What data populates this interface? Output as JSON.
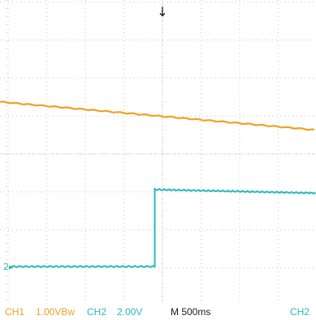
{
  "trigger_marker": "↓",
  "ch2_ground_marker": "2▸",
  "status": {
    "ch1_label": "CH1",
    "ch1_scale": "1.00VBw",
    "ch2_label": "CH2",
    "ch2_scale": "2.00V",
    "timebase": "M 500ms",
    "ch2_right": "CH2"
  },
  "colors": {
    "background": "#ffffff",
    "grid": "#c4c4c4",
    "ch1": "#f0a020",
    "ch2": "#2ab8b8",
    "trigger": "#101010",
    "text_dark": "#202020"
  },
  "traces": {
    "ch1": {
      "description_value": "slowly falling ramp",
      "start_level_div": 1.2,
      "end_level_div": 0.8
    },
    "ch2": {
      "low_level_div": -2.0,
      "high_level_div": 0.0,
      "step_time_div": -0.2
    }
  }
}
